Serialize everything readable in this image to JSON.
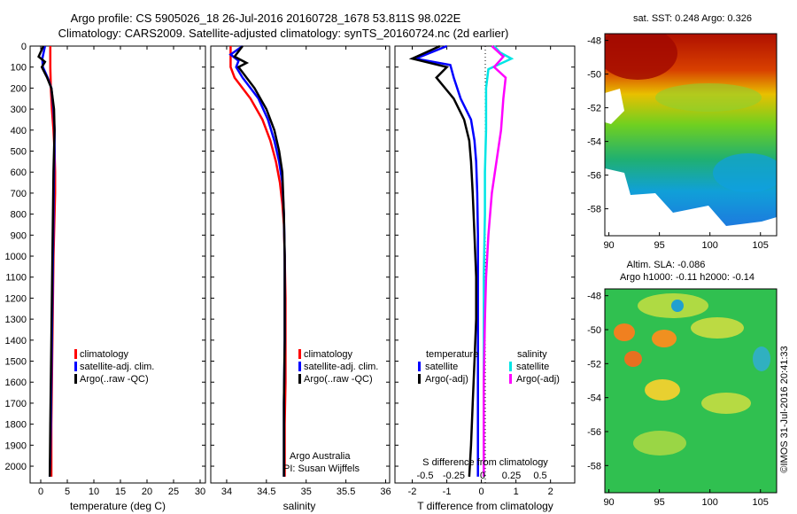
{
  "header": {
    "title_line1": "Argo profile: CS 5905026_18 26-Jul-2016 20160728_1678 53.811S 98.022E",
    "title_line2": "Climatology: CARS2009. Satellite-adjusted climatology: synTS_20160724.nc (2d earlier)"
  },
  "colors": {
    "climatology": "#ff0000",
    "satellite": "#0000ff",
    "argo": "#000000",
    "sal_satellite": "#00e5e5",
    "sal_argo": "#ff00ff"
  },
  "chart_data": [
    {
      "type": "line",
      "xlabel": "temperature (deg C)",
      "ylabel": "",
      "xlim": [
        -2,
        31
      ],
      "ylim": [
        2080,
        0
      ],
      "xticks": [
        0,
        5,
        10,
        15,
        20,
        25,
        30
      ],
      "xtick_labels": [
        "0",
        "5",
        "10",
        "15",
        "20",
        "25",
        "30"
      ],
      "yticks": [
        0,
        100,
        200,
        300,
        400,
        500,
        600,
        700,
        800,
        900,
        1000,
        1100,
        1200,
        1300,
        1400,
        1500,
        1600,
        1700,
        1800,
        1900,
        2000
      ],
      "ytick_labels": [
        "0",
        "100",
        "200",
        "300",
        "400",
        "500",
        "600",
        "700",
        "800",
        "900",
        "1000",
        "1100",
        "1200",
        "1300",
        "1400",
        "1500",
        "1600",
        "1700",
        "1800",
        "1900",
        "2000"
      ],
      "legend": [
        "climatology",
        "satellite-adj. clim.",
        "Argo(..raw -QC)"
      ],
      "series": [
        {
          "name": "climatology",
          "x": [
            1.8,
            1.8,
            1.9,
            2.1,
            2.4,
            2.6,
            2.7,
            2.7,
            2.6,
            2.5,
            2.4,
            2.3,
            2.2,
            2.1,
            2.0,
            2.0
          ],
          "y": [
            0,
            100,
            200,
            300,
            400,
            500,
            600,
            700,
            800,
            900,
            1000,
            1200,
            1400,
            1600,
            1800,
            2050
          ]
        },
        {
          "name": "satellite-adj. clim.",
          "x": [
            0.8,
            0.3,
            0.4,
            1.3,
            2.0,
            2.4,
            2.6,
            2.6,
            2.5,
            2.4,
            2.3,
            2.2,
            2.1,
            2.0,
            1.9,
            1.8,
            1.7
          ],
          "y": [
            0,
            60,
            100,
            150,
            200,
            300,
            400,
            500,
            600,
            800,
            1000,
            1200,
            1400,
            1600,
            1800,
            1950,
            2050
          ]
        },
        {
          "name": "Argo(..raw -QC)",
          "x": [
            0.5,
            -0.4,
            0.8,
            0.2,
            1.2,
            2.0,
            2.5,
            2.6,
            2.5,
            2.4,
            2.3,
            2.2,
            2.1,
            2.0,
            1.9,
            1.8,
            1.7
          ],
          "y": [
            0,
            50,
            75,
            100,
            150,
            200,
            300,
            400,
            500,
            600,
            800,
            1000,
            1200,
            1400,
            1600,
            1800,
            2050
          ]
        }
      ]
    },
    {
      "type": "line",
      "xlabel": "salinity",
      "xlim": [
        33.8,
        36.05
      ],
      "ylim": [
        2080,
        0
      ],
      "xticks": [
        34,
        34.5,
        35,
        35.5,
        36
      ],
      "xtick_labels": [
        "34",
        "34.5",
        "35",
        "35.5",
        "36"
      ],
      "legend": [
        "climatology",
        "satellite-adj. clim.",
        "Argo(..raw -QC)"
      ],
      "annotation": [
        "Argo Australia",
        "PI: Susan Wijffels"
      ],
      "series": [
        {
          "name": "climatology",
          "x": [
            34.05,
            34.05,
            34.1,
            34.3,
            34.45,
            34.55,
            34.62,
            34.67,
            34.7,
            34.72,
            34.73,
            34.74,
            34.74,
            34.74,
            34.73,
            34.73
          ],
          "y": [
            0,
            100,
            150,
            250,
            350,
            450,
            550,
            650,
            750,
            850,
            1000,
            1200,
            1400,
            1600,
            1800,
            2050
          ]
        },
        {
          "name": "satellite-adj. clim.",
          "x": [
            34.2,
            34.05,
            34.15,
            34.12,
            34.2,
            34.4,
            34.52,
            34.6,
            34.66,
            34.7,
            34.72,
            34.73,
            34.73,
            34.73,
            34.72,
            34.72
          ],
          "y": [
            0,
            40,
            70,
            100,
            150,
            250,
            350,
            450,
            550,
            650,
            800,
            1000,
            1200,
            1400,
            1700,
            2050
          ]
        },
        {
          "name": "Argo(..raw -QC)",
          "x": [
            34.2,
            34.1,
            34.25,
            34.15,
            34.25,
            34.35,
            34.5,
            34.6,
            34.66,
            34.7,
            34.72,
            34.73,
            34.73,
            34.73,
            34.72,
            34.72
          ],
          "y": [
            0,
            50,
            80,
            100,
            150,
            200,
            300,
            400,
            500,
            600,
            800,
            1000,
            1200,
            1400,
            1700,
            2050
          ]
        }
      ]
    },
    {
      "type": "line",
      "xlabel": "T difference from climatology",
      "top_axis_label": "S difference from climatology",
      "xlim": [
        -2.5,
        2.7
      ],
      "ylim": [
        2080,
        0
      ],
      "xticks": [
        -2,
        -1,
        0,
        1,
        2
      ],
      "xtick_labels": [
        "-2",
        "-1",
        "0",
        "1",
        "2"
      ],
      "s_ticks": [
        -0.5,
        -0.25,
        0,
        0.25,
        0.5
      ],
      "s_tick_labels": [
        "-0.5",
        "-0.25",
        "0",
        "0.25",
        "0.5"
      ],
      "legend_temperature_title": "temperature",
      "legend_salinity_title": "salinity",
      "legend_temperature": [
        "satellite",
        "Argo(-adj)"
      ],
      "legend_salinity": [
        "satellite",
        "Argo(-adj)"
      ],
      "series": [
        {
          "name": "T satellite",
          "x": [
            -1,
            -1.9,
            -0.9,
            -0.8,
            -0.6,
            -0.3,
            -0.2,
            -0.15,
            -0.12,
            -0.1,
            -0.1,
            -0.1,
            -0.1,
            -0.1,
            -0.1,
            -0.1
          ],
          "y": [
            0,
            60,
            90,
            150,
            250,
            350,
            450,
            550,
            700,
            900,
            1100,
            1300,
            1500,
            1700,
            1900,
            2050
          ]
        },
        {
          "name": "T Argo(-adj)",
          "x": [
            -1.2,
            -2.0,
            -1.0,
            -1.3,
            -0.8,
            -0.5,
            -0.35,
            -0.3,
            -0.25,
            -0.2,
            -0.15,
            -0.15,
            -0.2,
            -0.25,
            -0.3,
            -0.35
          ],
          "y": [
            0,
            60,
            100,
            150,
            250,
            350,
            450,
            550,
            700,
            900,
            1100,
            1300,
            1500,
            1700,
            1900,
            2050
          ]
        },
        {
          "name": "S satellite",
          "x": [
            0.1,
            0.15,
            0.25,
            0.05,
            0.03,
            0.03,
            0.02,
            0.02,
            0.01,
            0.01,
            0.01
          ],
          "y": [
            0,
            30,
            60,
            110,
            200,
            400,
            600,
            800,
            1100,
            1600,
            2050
          ]
        },
        {
          "name": "S Argo(-adj)",
          "x": [
            0.08,
            0.18,
            0.1,
            0.2,
            0.18,
            0.16,
            0.12,
            0.08,
            0.05,
            0.03,
            0.02,
            0.01,
            0.01
          ],
          "y": [
            0,
            50,
            100,
            150,
            250,
            400,
            550,
            700,
            900,
            1100,
            1300,
            1600,
            2050
          ]
        }
      ]
    },
    {
      "type": "heatmap",
      "title": "sat. SST: 0.248 Argo: 0.326",
      "xlim": [
        89.6,
        106.6
      ],
      "ylim": [
        -59.6,
        -47.6
      ],
      "xticks": [
        90,
        95,
        100,
        105
      ],
      "xtick_labels": [
        "90",
        "95",
        "100",
        "105"
      ],
      "yticks": [
        -48,
        -50,
        -52,
        -54,
        -56,
        -58
      ],
      "ytick_labels": [
        "-48",
        "-50",
        "-52",
        "-54",
        "-56",
        "-58"
      ]
    },
    {
      "type": "heatmap",
      "title": "Altim. SLA: -0.086",
      "subtitle": "Argo h1000: -0.11 h2000: -0.14",
      "xlim": [
        89.6,
        106.6
      ],
      "ylim": [
        -59.6,
        -47.6
      ],
      "xticks": [
        90,
        95,
        100,
        105
      ],
      "xtick_labels": [
        "90",
        "95",
        "100",
        "105"
      ],
      "yticks": [
        -48,
        -50,
        -52,
        -54,
        -56,
        -58
      ],
      "ytick_labels": [
        "-48",
        "-50",
        "-52",
        "-54",
        "-56",
        "-58"
      ]
    }
  ],
  "footer": {
    "stamp": "©IMOS 31-Jul-2016 20:41:33"
  }
}
